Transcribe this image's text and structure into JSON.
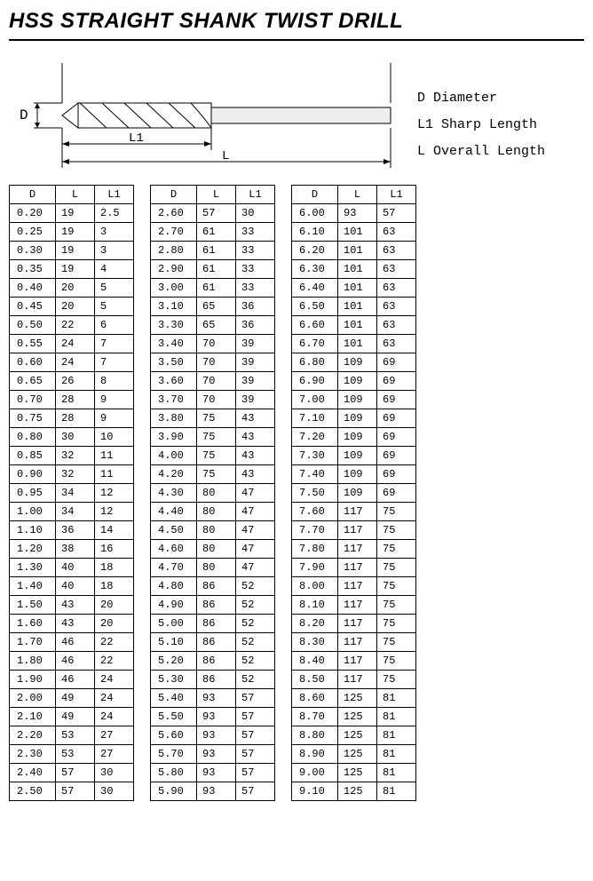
{
  "title": "HSS STRAIGHT SHANK TWIST DRILL",
  "legend": {
    "d": "D Diameter",
    "l1": "L1 Sharp Length",
    "l": "L Overall Length"
  },
  "diagram": {
    "label_D": "D",
    "label_L1": "L1",
    "label_L": "L",
    "stroke": "#000000",
    "fill_body": "#f0f0f0"
  },
  "headers": {
    "d": "D",
    "l": "L",
    "l1": "L1"
  },
  "tables": [
    [
      [
        "0.20",
        "19",
        "2.5"
      ],
      [
        "0.25",
        "19",
        "3"
      ],
      [
        "0.30",
        "19",
        "3"
      ],
      [
        "0.35",
        "19",
        "4"
      ],
      [
        "0.40",
        "20",
        "5"
      ],
      [
        "0.45",
        "20",
        "5"
      ],
      [
        "0.50",
        "22",
        "6"
      ],
      [
        "0.55",
        "24",
        "7"
      ],
      [
        "0.60",
        "24",
        "7"
      ],
      [
        "0.65",
        "26",
        "8"
      ],
      [
        "0.70",
        "28",
        "9"
      ],
      [
        "0.75",
        "28",
        "9"
      ],
      [
        "0.80",
        "30",
        "10"
      ],
      [
        "0.85",
        "32",
        "11"
      ],
      [
        "0.90",
        "32",
        "11"
      ],
      [
        "0.95",
        "34",
        "12"
      ],
      [
        "1.00",
        "34",
        "12"
      ],
      [
        "1.10",
        "36",
        "14"
      ],
      [
        "1.20",
        "38",
        "16"
      ],
      [
        "1.30",
        "40",
        "18"
      ],
      [
        "1.40",
        "40",
        "18"
      ],
      [
        "1.50",
        "43",
        "20"
      ],
      [
        "1.60",
        "43",
        "20"
      ],
      [
        "1.70",
        "46",
        "22"
      ],
      [
        "1.80",
        "46",
        "22"
      ],
      [
        "1.90",
        "46",
        "24"
      ],
      [
        "2.00",
        "49",
        "24"
      ],
      [
        "2.10",
        "49",
        "24"
      ],
      [
        "2.20",
        "53",
        "27"
      ],
      [
        "2.30",
        "53",
        "27"
      ],
      [
        "2.40",
        "57",
        "30"
      ],
      [
        "2.50",
        "57",
        "30"
      ]
    ],
    [
      [
        "2.60",
        "57",
        "30"
      ],
      [
        "2.70",
        "61",
        "33"
      ],
      [
        "2.80",
        "61",
        "33"
      ],
      [
        "2.90",
        "61",
        "33"
      ],
      [
        "3.00",
        "61",
        "33"
      ],
      [
        "3.10",
        "65",
        "36"
      ],
      [
        "3.30",
        "65",
        "36"
      ],
      [
        "3.40",
        "70",
        "39"
      ],
      [
        "3.50",
        "70",
        "39"
      ],
      [
        "3.60",
        "70",
        "39"
      ],
      [
        "3.70",
        "70",
        "39"
      ],
      [
        "3.80",
        "75",
        "43"
      ],
      [
        "3.90",
        "75",
        "43"
      ],
      [
        "4.00",
        "75",
        "43"
      ],
      [
        "4.20",
        "75",
        "43"
      ],
      [
        "4.30",
        "80",
        "47"
      ],
      [
        "4.40",
        "80",
        "47"
      ],
      [
        "4.50",
        "80",
        "47"
      ],
      [
        "4.60",
        "80",
        "47"
      ],
      [
        "4.70",
        "80",
        "47"
      ],
      [
        "4.80",
        "86",
        "52"
      ],
      [
        "4.90",
        "86",
        "52"
      ],
      [
        "5.00",
        "86",
        "52"
      ],
      [
        "5.10",
        "86",
        "52"
      ],
      [
        "5.20",
        "86",
        "52"
      ],
      [
        "5.30",
        "86",
        "52"
      ],
      [
        "5.40",
        "93",
        "57"
      ],
      [
        "5.50",
        "93",
        "57"
      ],
      [
        "5.60",
        "93",
        "57"
      ],
      [
        "5.70",
        "93",
        "57"
      ],
      [
        "5.80",
        "93",
        "57"
      ],
      [
        "5.90",
        "93",
        "57"
      ]
    ],
    [
      [
        "6.00",
        "93",
        "57"
      ],
      [
        "6.10",
        "101",
        "63"
      ],
      [
        "6.20",
        "101",
        "63"
      ],
      [
        "6.30",
        "101",
        "63"
      ],
      [
        "6.40",
        "101",
        "63"
      ],
      [
        "6.50",
        "101",
        "63"
      ],
      [
        "6.60",
        "101",
        "63"
      ],
      [
        "6.70",
        "101",
        "63"
      ],
      [
        "6.80",
        "109",
        "69"
      ],
      [
        "6.90",
        "109",
        "69"
      ],
      [
        "7.00",
        "109",
        "69"
      ],
      [
        "7.10",
        "109",
        "69"
      ],
      [
        "7.20",
        "109",
        "69"
      ],
      [
        "7.30",
        "109",
        "69"
      ],
      [
        "7.40",
        "109",
        "69"
      ],
      [
        "7.50",
        "109",
        "69"
      ],
      [
        "7.60",
        "117",
        "75"
      ],
      [
        "7.70",
        "117",
        "75"
      ],
      [
        "7.80",
        "117",
        "75"
      ],
      [
        "7.90",
        "117",
        "75"
      ],
      [
        "8.00",
        "117",
        "75"
      ],
      [
        "8.10",
        "117",
        "75"
      ],
      [
        "8.20",
        "117",
        "75"
      ],
      [
        "8.30",
        "117",
        "75"
      ],
      [
        "8.40",
        "117",
        "75"
      ],
      [
        "8.50",
        "117",
        "75"
      ],
      [
        "8.60",
        "125",
        "81"
      ],
      [
        "8.70",
        "125",
        "81"
      ],
      [
        "8.80",
        "125",
        "81"
      ],
      [
        "8.90",
        "125",
        "81"
      ],
      [
        "9.00",
        "125",
        "81"
      ],
      [
        "9.10",
        "125",
        "81"
      ]
    ]
  ]
}
